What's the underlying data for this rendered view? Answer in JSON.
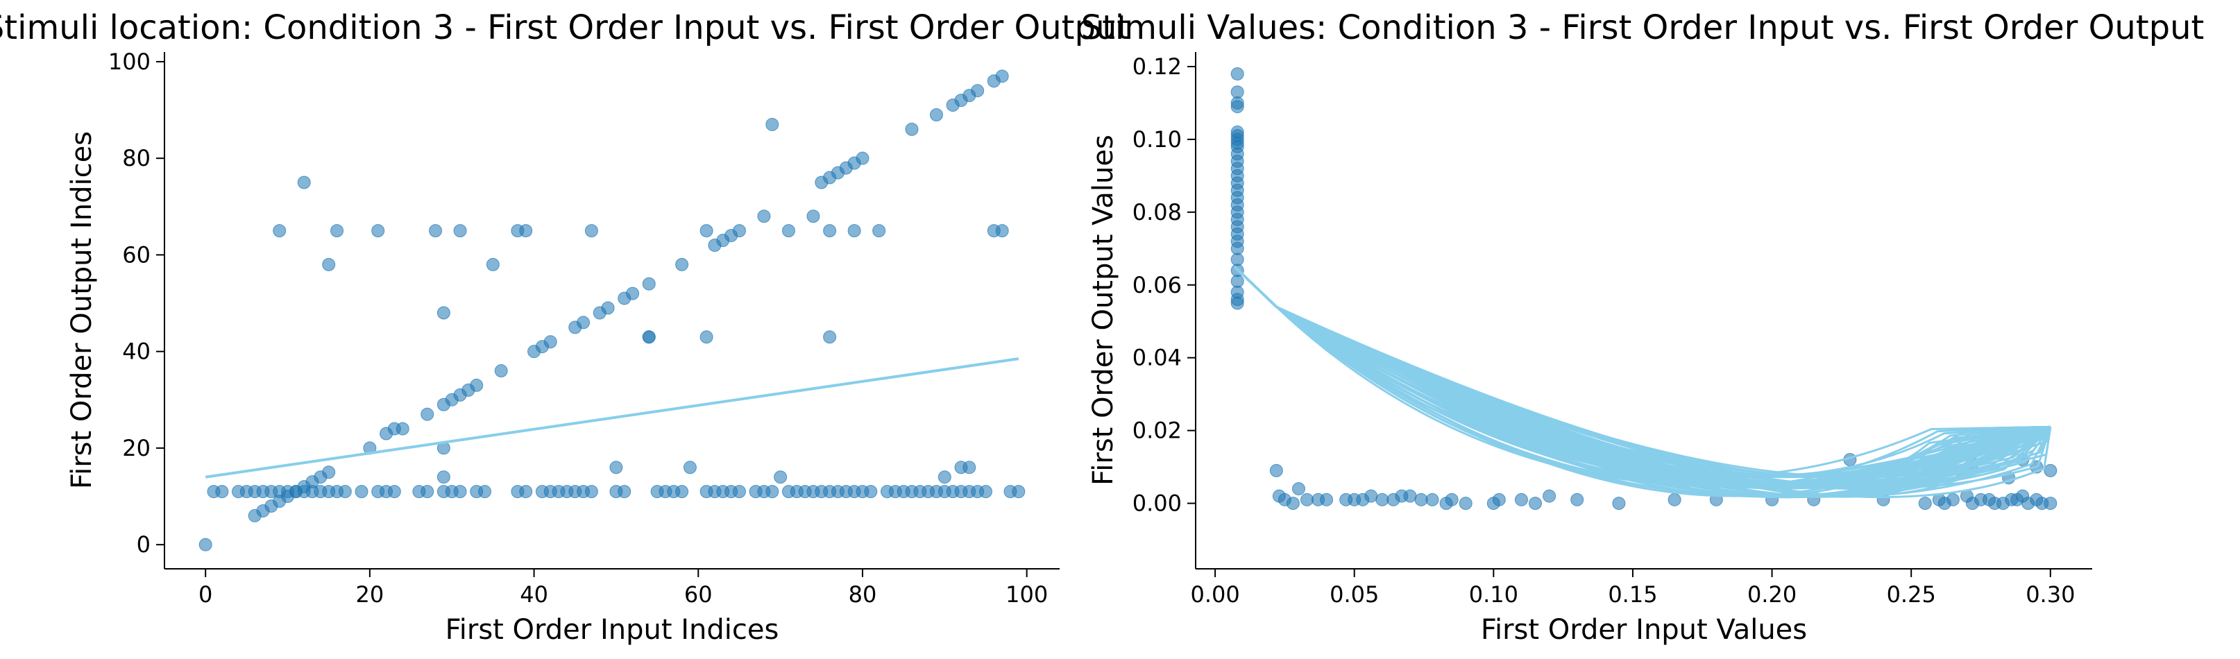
{
  "colors": {
    "points": "#1f77b4",
    "line": "#87ceeb",
    "axis": "#000000",
    "background": "#ffffff"
  },
  "chart_data": [
    {
      "type": "scatter",
      "title": "Stimuli location: Condition 3 - First Order Input vs. First Order Output",
      "xlabel": "First Order Input Indices",
      "ylabel": "First Order Output Indices",
      "xlim": [
        -5,
        104
      ],
      "ylim": [
        -5,
        102
      ],
      "xticks": [
        0,
        20,
        40,
        60,
        80,
        100
      ],
      "yticks": [
        0,
        20,
        40,
        60,
        80,
        100
      ],
      "xtick_labels": [
        "0",
        "20",
        "40",
        "60",
        "80",
        "100"
      ],
      "ytick_labels": [
        "0",
        "20",
        "40",
        "60",
        "80",
        "100"
      ],
      "grid": false,
      "series": [
        {
          "kind": "points",
          "x": [
            0,
            1,
            2,
            4,
            5,
            6,
            7,
            8,
            9,
            10,
            11,
            12,
            13,
            14,
            15,
            16,
            17,
            19,
            21,
            22,
            23,
            26,
            27,
            29,
            30,
            31,
            33,
            34,
            38,
            39,
            41,
            42,
            43,
            44,
            45,
            46,
            47,
            50,
            51,
            55,
            56,
            57,
            58,
            61,
            62,
            63,
            64,
            65,
            67,
            68,
            69,
            71,
            72,
            73,
            74,
            75,
            76,
            77,
            78,
            79,
            80,
            81,
            83,
            84,
            85,
            86,
            87,
            88,
            89,
            90,
            91,
            92,
            93,
            94,
            95,
            98,
            99,
            6,
            7,
            8,
            9,
            10,
            11,
            12,
            13,
            14,
            15,
            20,
            22,
            23,
            24,
            27,
            29,
            30,
            31,
            32,
            33,
            36,
            40,
            41,
            42,
            45,
            46,
            48,
            49,
            51,
            52,
            54,
            58,
            62,
            63,
            64,
            65,
            68,
            75,
            76,
            77,
            78,
            79,
            80,
            86,
            89,
            91,
            92,
            93,
            94,
            96,
            97,
            9,
            12,
            15,
            16,
            21,
            28,
            29,
            31,
            38,
            39,
            47,
            54,
            61,
            61,
            69,
            71,
            74,
            76,
            76,
            79,
            82,
            93,
            96,
            97,
            35,
            29,
            29,
            50,
            59,
            70,
            90,
            92,
            54
          ],
          "y": [
            0,
            11,
            11,
            11,
            11,
            11,
            11,
            11,
            11,
            11,
            11,
            11,
            11,
            11,
            11,
            11,
            11,
            11,
            11,
            11,
            11,
            11,
            11,
            11,
            11,
            11,
            11,
            11,
            11,
            11,
            11,
            11,
            11,
            11,
            11,
            11,
            11,
            11,
            11,
            11,
            11,
            11,
            11,
            11,
            11,
            11,
            11,
            11,
            11,
            11,
            11,
            11,
            11,
            11,
            11,
            11,
            11,
            11,
            11,
            11,
            11,
            11,
            11,
            11,
            11,
            11,
            11,
            11,
            11,
            11,
            11,
            11,
            11,
            11,
            11,
            11,
            11,
            6,
            7,
            8,
            9,
            10,
            11,
            12,
            13,
            14,
            15,
            20,
            23,
            24,
            24,
            27,
            29,
            30,
            31,
            32,
            33,
            36,
            40,
            41,
            42,
            45,
            46,
            48,
            49,
            51,
            52,
            54,
            58,
            62,
            63,
            64,
            65,
            68,
            75,
            76,
            77,
            78,
            79,
            80,
            86,
            89,
            91,
            92,
            93,
            94,
            96,
            97,
            65,
            75,
            58,
            65,
            65,
            65,
            48,
            65,
            65,
            65,
            65,
            43,
            43,
            65,
            87,
            65,
            68,
            43,
            65,
            65,
            65,
            16,
            65,
            65,
            58,
            20,
            14,
            16,
            16,
            14,
            14,
            16,
            43
          ]
        },
        {
          "kind": "line",
          "x": [
            0,
            99
          ],
          "y": [
            14,
            38.5
          ]
        }
      ]
    },
    {
      "type": "scatter",
      "title": "Stimuli Values: Condition 3 - First Order Input vs. First Order Output",
      "xlabel": "First Order Input Values",
      "ylabel": "First Order Output Values",
      "xlim": [
        -0.007,
        0.315
      ],
      "ylim": [
        -0.018,
        0.124
      ],
      "xticks": [
        0.0,
        0.05,
        0.1,
        0.15,
        0.2,
        0.25,
        0.3
      ],
      "yticks": [
        0.0,
        0.02,
        0.04,
        0.06,
        0.08,
        0.1,
        0.12
      ],
      "xtick_labels": [
        "0.00",
        "0.05",
        "0.10",
        "0.15",
        "0.20",
        "0.25",
        "0.30"
      ],
      "ytick_labels": [
        "0.00",
        "0.02",
        "0.04",
        "0.06",
        "0.08",
        "0.10",
        "0.12"
      ],
      "grid": false,
      "series": [
        {
          "kind": "points",
          "x": [
            0.008,
            0.008,
            0.008,
            0.008,
            0.008,
            0.008,
            0.008,
            0.008,
            0.008,
            0.008,
            0.008,
            0.008,
            0.008,
            0.008,
            0.008,
            0.008,
            0.008,
            0.008,
            0.008,
            0.008,
            0.008,
            0.008,
            0.008,
            0.008,
            0.008,
            0.008,
            0.008,
            0.008,
            0.008,
            0.022,
            0.023,
            0.025,
            0.028,
            0.03,
            0.033,
            0.037,
            0.04,
            0.047,
            0.05,
            0.053,
            0.056,
            0.06,
            0.064,
            0.067,
            0.07,
            0.074,
            0.078,
            0.083,
            0.085,
            0.09,
            0.1,
            0.102,
            0.11,
            0.115,
            0.12,
            0.13,
            0.145,
            0.165,
            0.18,
            0.2,
            0.215,
            0.228,
            0.24,
            0.255,
            0.26,
            0.262,
            0.265,
            0.27,
            0.272,
            0.275,
            0.278,
            0.28,
            0.283,
            0.286,
            0.288,
            0.29,
            0.292,
            0.295,
            0.297,
            0.3,
            0.285,
            0.29,
            0.295,
            0.3,
            0.272,
            0.268
          ],
          "y": [
            0.118,
            0.113,
            0.11,
            0.109,
            0.102,
            0.101,
            0.1,
            0.099,
            0.098,
            0.096,
            0.094,
            0.092,
            0.09,
            0.088,
            0.086,
            0.084,
            0.082,
            0.08,
            0.078,
            0.076,
            0.074,
            0.072,
            0.07,
            0.067,
            0.064,
            0.061,
            0.058,
            0.056,
            0.055,
            0.009,
            0.002,
            0.001,
            0.0,
            0.004,
            0.001,
            0.001,
            0.001,
            0.001,
            0.001,
            0.001,
            0.002,
            0.001,
            0.001,
            0.002,
            0.002,
            0.001,
            0.001,
            0.0,
            0.001,
            0.0,
            0.0,
            0.001,
            0.001,
            0.0,
            0.002,
            0.001,
            0.0,
            0.001,
            0.001,
            0.001,
            0.001,
            0.012,
            0.001,
            0.0,
            0.001,
            0.0,
            0.001,
            0.002,
            0.0,
            0.001,
            0.001,
            0.0,
            0.0,
            0.001,
            0.001,
            0.002,
            0.0,
            0.001,
            0.0,
            0.0,
            0.007,
            0.012,
            0.01,
            0.009,
            0.011,
            0.009
          ]
        },
        {
          "kind": "line",
          "style": "dense-polyline",
          "x_range": [
            0.007,
            0.3
          ],
          "y_start": 0.065,
          "knee": [
            0.022,
            0.054
          ],
          "end": [
            0.3,
            0.021
          ],
          "trough_y_range": [
            -0.012,
            0.0
          ]
        }
      ]
    }
  ]
}
